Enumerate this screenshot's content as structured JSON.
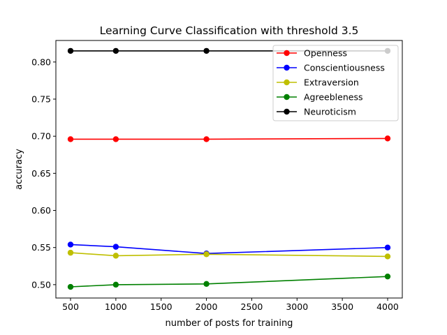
{
  "chart_data": {
    "type": "line",
    "title": "Learning Curve Classification with threshold 3.5",
    "xlabel": "number of posts for training",
    "ylabel": "accuracy",
    "x": [
      500,
      1000,
      2000,
      4000
    ],
    "xlim": [
      338,
      4162
    ],
    "ylim": [
      0.482,
      0.829
    ],
    "xticks": [
      500,
      1000,
      1500,
      2000,
      2500,
      3000,
      3500,
      4000
    ],
    "yticks": [
      0.5,
      0.55,
      0.6,
      0.65,
      0.7,
      0.75,
      0.8
    ],
    "xtick_labels": [
      "500",
      "1000",
      "1500",
      "2000",
      "2500",
      "3000",
      "3500",
      "4000"
    ],
    "ytick_labels": [
      "0.50",
      "0.55",
      "0.60",
      "0.65",
      "0.70",
      "0.75",
      "0.80"
    ],
    "grid": false,
    "legend_position": "top-right",
    "series": [
      {
        "name": "Openness",
        "color": "#ff0000",
        "values": [
          0.696,
          0.696,
          0.696,
          0.697
        ]
      },
      {
        "name": "Conscientiousness",
        "color": "#0000ff",
        "values": [
          0.554,
          0.551,
          0.542,
          0.55
        ]
      },
      {
        "name": "Extraversion",
        "color": "#bfbf00",
        "values": [
          0.543,
          0.539,
          0.541,
          0.538
        ]
      },
      {
        "name": "Agreebleness",
        "color": "#008000",
        "values": [
          0.497,
          0.5,
          0.501,
          0.511
        ]
      },
      {
        "name": "Neuroticism",
        "color": "#000000",
        "values": [
          0.815,
          0.815,
          0.815,
          0.815
        ]
      }
    ]
  }
}
